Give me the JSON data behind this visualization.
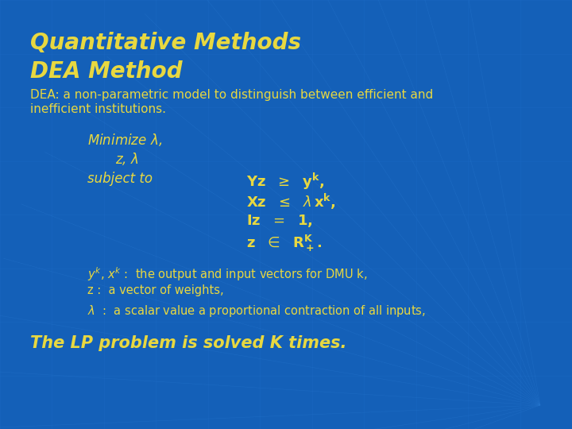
{
  "bg_color": "#1460b8",
  "text_color": "#e8d840",
  "title1": "Quantitative Methods",
  "title2": "DEA Method",
  "subtitle_line1": "DEA: a non-parametric model to distinguish between efficient and",
  "subtitle_line2": "inefficient institutions.",
  "fig_width": 7.2,
  "fig_height": 5.4,
  "dpi": 100
}
